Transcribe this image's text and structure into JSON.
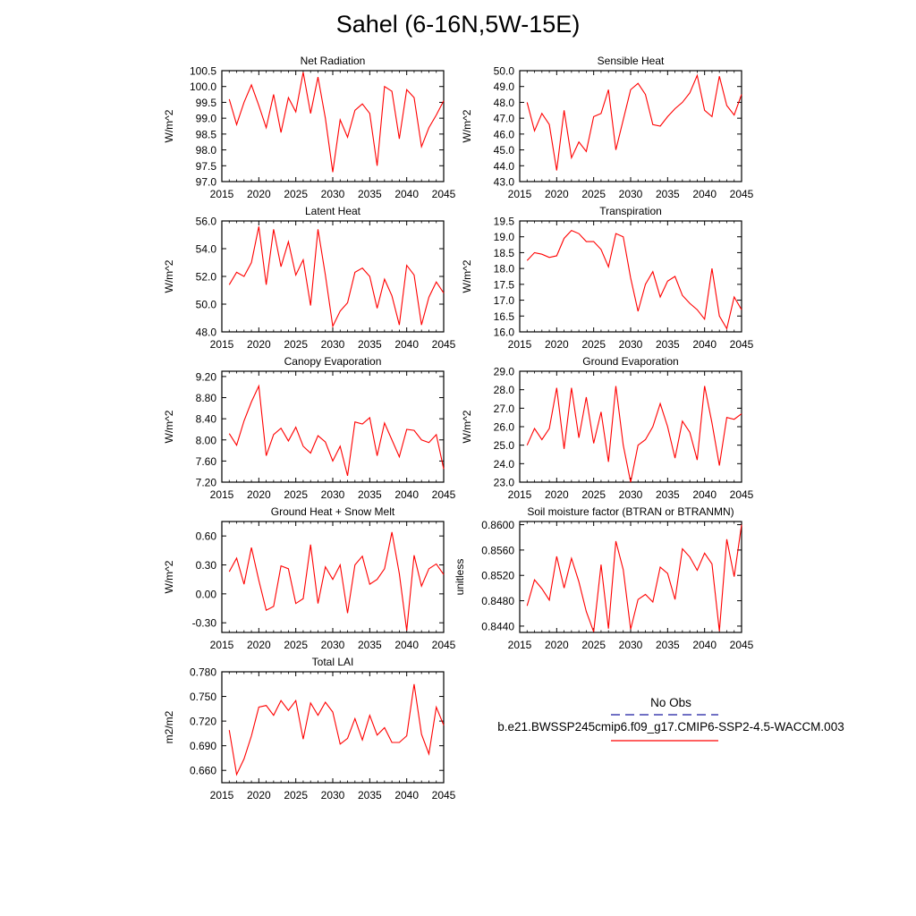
{
  "title": "Sahel (6-16N,5W-15E)",
  "legend": {
    "obs_label": "No Obs",
    "case_label": "b.e21.BWSSP245cmip6.f09_g17.CMIP6-SSP2-4.5-WACCM.003",
    "obs_color": "#1a1aa0",
    "case_color": "#ff0000"
  },
  "chart_data": [
    {
      "type": "line",
      "title": "Net Radiation",
      "ylabel": "W/m^2",
      "xlim": [
        2015,
        2045
      ],
      "ylim": [
        97.0,
        100.5
      ],
      "xticks": [
        2015,
        2020,
        2025,
        2030,
        2035,
        2040,
        2045
      ],
      "yticks": [
        "97.0",
        "97.5",
        "98.0",
        "98.5",
        "99.0",
        "99.5",
        "100.0",
        "100.5"
      ],
      "x_start": 2016,
      "values": [
        99.6,
        98.8,
        99.5,
        100.05,
        99.4,
        98.7,
        99.75,
        98.55,
        99.65,
        99.2,
        100.45,
        99.15,
        100.3,
        99.0,
        97.3,
        98.95,
        98.4,
        99.25,
        99.45,
        99.15,
        97.5,
        100.0,
        99.85,
        98.35,
        99.9,
        99.65,
        98.1,
        98.7,
        99.1,
        99.55
      ]
    },
    {
      "type": "line",
      "title": "Sensible Heat",
      "ylabel": "W/m^2",
      "xlim": [
        2015,
        2045
      ],
      "ylim": [
        43.0,
        50.0
      ],
      "xticks": [
        2015,
        2020,
        2025,
        2030,
        2035,
        2040,
        2045
      ],
      "yticks": [
        "43.0",
        "44.0",
        "45.0",
        "46.0",
        "47.0",
        "48.0",
        "49.0",
        "50.0"
      ],
      "x_start": 2016,
      "values": [
        48.0,
        46.2,
        47.3,
        46.6,
        43.7,
        47.5,
        44.5,
        45.5,
        44.9,
        47.1,
        47.3,
        48.8,
        45.0,
        46.9,
        48.8,
        49.2,
        48.5,
        46.6,
        46.5,
        47.1,
        47.6,
        48.0,
        48.6,
        49.7,
        47.5,
        47.1,
        49.65,
        47.8,
        47.2,
        48.5
      ]
    },
    {
      "type": "line",
      "title": "Latent Heat",
      "ylabel": "W/m^2",
      "xlim": [
        2015,
        2045
      ],
      "ylim": [
        48.0,
        56.0
      ],
      "xticks": [
        2015,
        2020,
        2025,
        2030,
        2035,
        2040,
        2045
      ],
      "yticks": [
        "48.0",
        "50.0",
        "52.0",
        "54.0",
        "56.0"
      ],
      "x_start": 2016,
      "values": [
        51.4,
        52.3,
        52.0,
        53.0,
        55.6,
        51.4,
        55.4,
        52.7,
        54.5,
        52.1,
        53.2,
        49.9,
        55.4,
        52.1,
        48.4,
        49.5,
        50.1,
        52.3,
        52.6,
        52.0,
        49.7,
        51.8,
        50.6,
        48.5,
        52.8,
        52.1,
        48.5,
        50.5,
        51.6,
        50.8
      ]
    },
    {
      "type": "line",
      "title": "Transpiration",
      "ylabel": "W/m^2",
      "xlim": [
        2015,
        2045
      ],
      "ylim": [
        16.0,
        19.5
      ],
      "xticks": [
        2015,
        2020,
        2025,
        2030,
        2035,
        2040,
        2045
      ],
      "yticks": [
        "16.0",
        "16.5",
        "17.0",
        "17.5",
        "18.0",
        "18.5",
        "19.0",
        "19.5"
      ],
      "x_start": 2016,
      "values": [
        18.25,
        18.5,
        18.45,
        18.35,
        18.4,
        18.95,
        19.2,
        19.1,
        18.85,
        18.85,
        18.6,
        18.05,
        19.1,
        19.0,
        17.7,
        16.65,
        17.5,
        17.9,
        17.1,
        17.6,
        17.75,
        17.15,
        16.9,
        16.7,
        16.4,
        18.0,
        16.5,
        16.1,
        17.1,
        16.7
      ]
    },
    {
      "type": "line",
      "title": "Canopy Evaporation",
      "ylabel": "W/m^2",
      "xlim": [
        2015,
        2045
      ],
      "ylim": [
        7.2,
        9.3
      ],
      "xticks": [
        2015,
        2020,
        2025,
        2030,
        2035,
        2040,
        2045
      ],
      "yticks": [
        "7.20",
        "7.60",
        "8.00",
        "8.40",
        "8.80",
        "9.20"
      ],
      "x_start": 2016,
      "values": [
        8.12,
        7.9,
        8.36,
        8.72,
        9.02,
        7.7,
        8.1,
        8.22,
        7.98,
        8.24,
        7.88,
        7.75,
        8.08,
        7.96,
        7.6,
        7.88,
        7.32,
        8.34,
        8.3,
        8.42,
        7.7,
        8.32,
        8.0,
        7.68,
        8.2,
        8.18,
        8.0,
        7.95,
        8.1,
        7.45
      ]
    },
    {
      "type": "line",
      "title": "Ground Evaporation",
      "ylabel": "W/m^2",
      "xlim": [
        2015,
        2045
      ],
      "ylim": [
        23.0,
        29.0
      ],
      "xticks": [
        2015,
        2020,
        2025,
        2030,
        2035,
        2040,
        2045
      ],
      "yticks": [
        "23.0",
        "24.0",
        "25.0",
        "26.0",
        "27.0",
        "28.0",
        "29.0"
      ],
      "x_start": 2016,
      "values": [
        25.0,
        25.9,
        25.3,
        25.9,
        28.1,
        24.8,
        28.1,
        25.4,
        27.6,
        25.1,
        26.8,
        24.1,
        28.2,
        25.0,
        23.0,
        25.0,
        25.3,
        26.0,
        27.25,
        26.0,
        24.3,
        26.3,
        25.7,
        24.2,
        28.2,
        26.2,
        23.9,
        26.5,
        26.4,
        26.7
      ]
    },
    {
      "type": "line",
      "title": "Ground Heat + Snow Melt",
      "ylabel": "W/m^2",
      "xlim": [
        2015,
        2045
      ],
      "ylim": [
        -0.4,
        0.75
      ],
      "xticks": [
        2015,
        2020,
        2025,
        2030,
        2035,
        2040,
        2045
      ],
      "yticks": [
        "-0.30",
        "0.00",
        "0.30",
        "0.60"
      ],
      "x_start": 2016,
      "values": [
        0.23,
        0.37,
        0.1,
        0.48,
        0.14,
        -0.17,
        -0.13,
        0.29,
        0.26,
        -0.1,
        -0.05,
        0.51,
        -0.1,
        0.28,
        0.15,
        0.3,
        -0.2,
        0.3,
        0.39,
        0.1,
        0.15,
        0.26,
        0.64,
        0.21,
        -0.38,
        0.4,
        0.08,
        0.26,
        0.31,
        0.2
      ]
    },
    {
      "type": "line",
      "title": "Soil moisture factor (BTRAN or BTRANMN)",
      "ylabel": "unitless",
      "xlim": [
        2015,
        2045
      ],
      "ylim": [
        0.843,
        0.8605
      ],
      "xticks": [
        2015,
        2020,
        2025,
        2030,
        2035,
        2040,
        2045
      ],
      "yticks": [
        "0.8440",
        "0.8480",
        "0.8520",
        "0.8560",
        "0.8600"
      ],
      "x_start": 2016,
      "values": [
        0.8472,
        0.8513,
        0.8499,
        0.8481,
        0.855,
        0.85,
        0.8547,
        0.851,
        0.8463,
        0.8431,
        0.8537,
        0.8436,
        0.8574,
        0.8529,
        0.8435,
        0.8482,
        0.849,
        0.8478,
        0.8533,
        0.8523,
        0.8482,
        0.8562,
        0.8549,
        0.8528,
        0.8555,
        0.8538,
        0.8432,
        0.8577,
        0.8518,
        0.86
      ]
    },
    {
      "type": "line",
      "title": "Total LAI",
      "ylabel": "m2/m2",
      "xlim": [
        2015,
        2045
      ],
      "ylim": [
        0.645,
        0.78
      ],
      "xticks": [
        2015,
        2020,
        2025,
        2030,
        2035,
        2040,
        2045
      ],
      "yticks": [
        "0.660",
        "0.690",
        "0.720",
        "0.750",
        "0.780"
      ],
      "x_start": 2016,
      "values": [
        0.709,
        0.655,
        0.674,
        0.702,
        0.737,
        0.739,
        0.727,
        0.745,
        0.733,
        0.745,
        0.698,
        0.742,
        0.727,
        0.743,
        0.731,
        0.692,
        0.699,
        0.723,
        0.697,
        0.727,
        0.703,
        0.712,
        0.694,
        0.694,
        0.702,
        0.765,
        0.704,
        0.68,
        0.737,
        0.715
      ]
    }
  ]
}
